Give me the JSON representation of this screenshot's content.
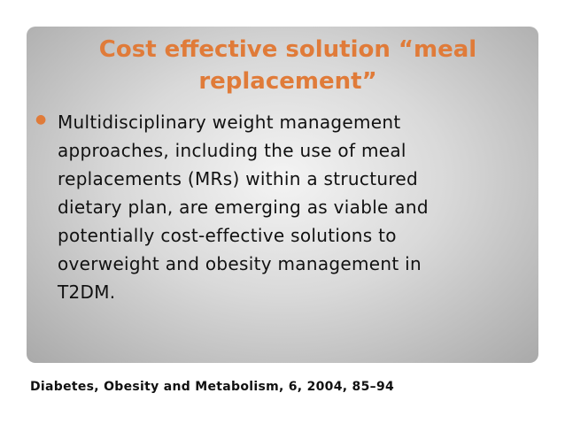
{
  "title": [
    "Cost effective solution “meal",
    "replacement”"
  ],
  "body": [
    "Multidisciplinary weight management",
    "approaches, including the use of meal",
    "replacements (MRs) within a structured",
    "dietary plan, are emerging as viable and",
    "potentially cost-effective solutions to",
    "overweight and obesity management in",
    "T2DM."
  ],
  "footer": "Diabetes, Obesity and Metabolism, 6, 2004, 85–94"
}
